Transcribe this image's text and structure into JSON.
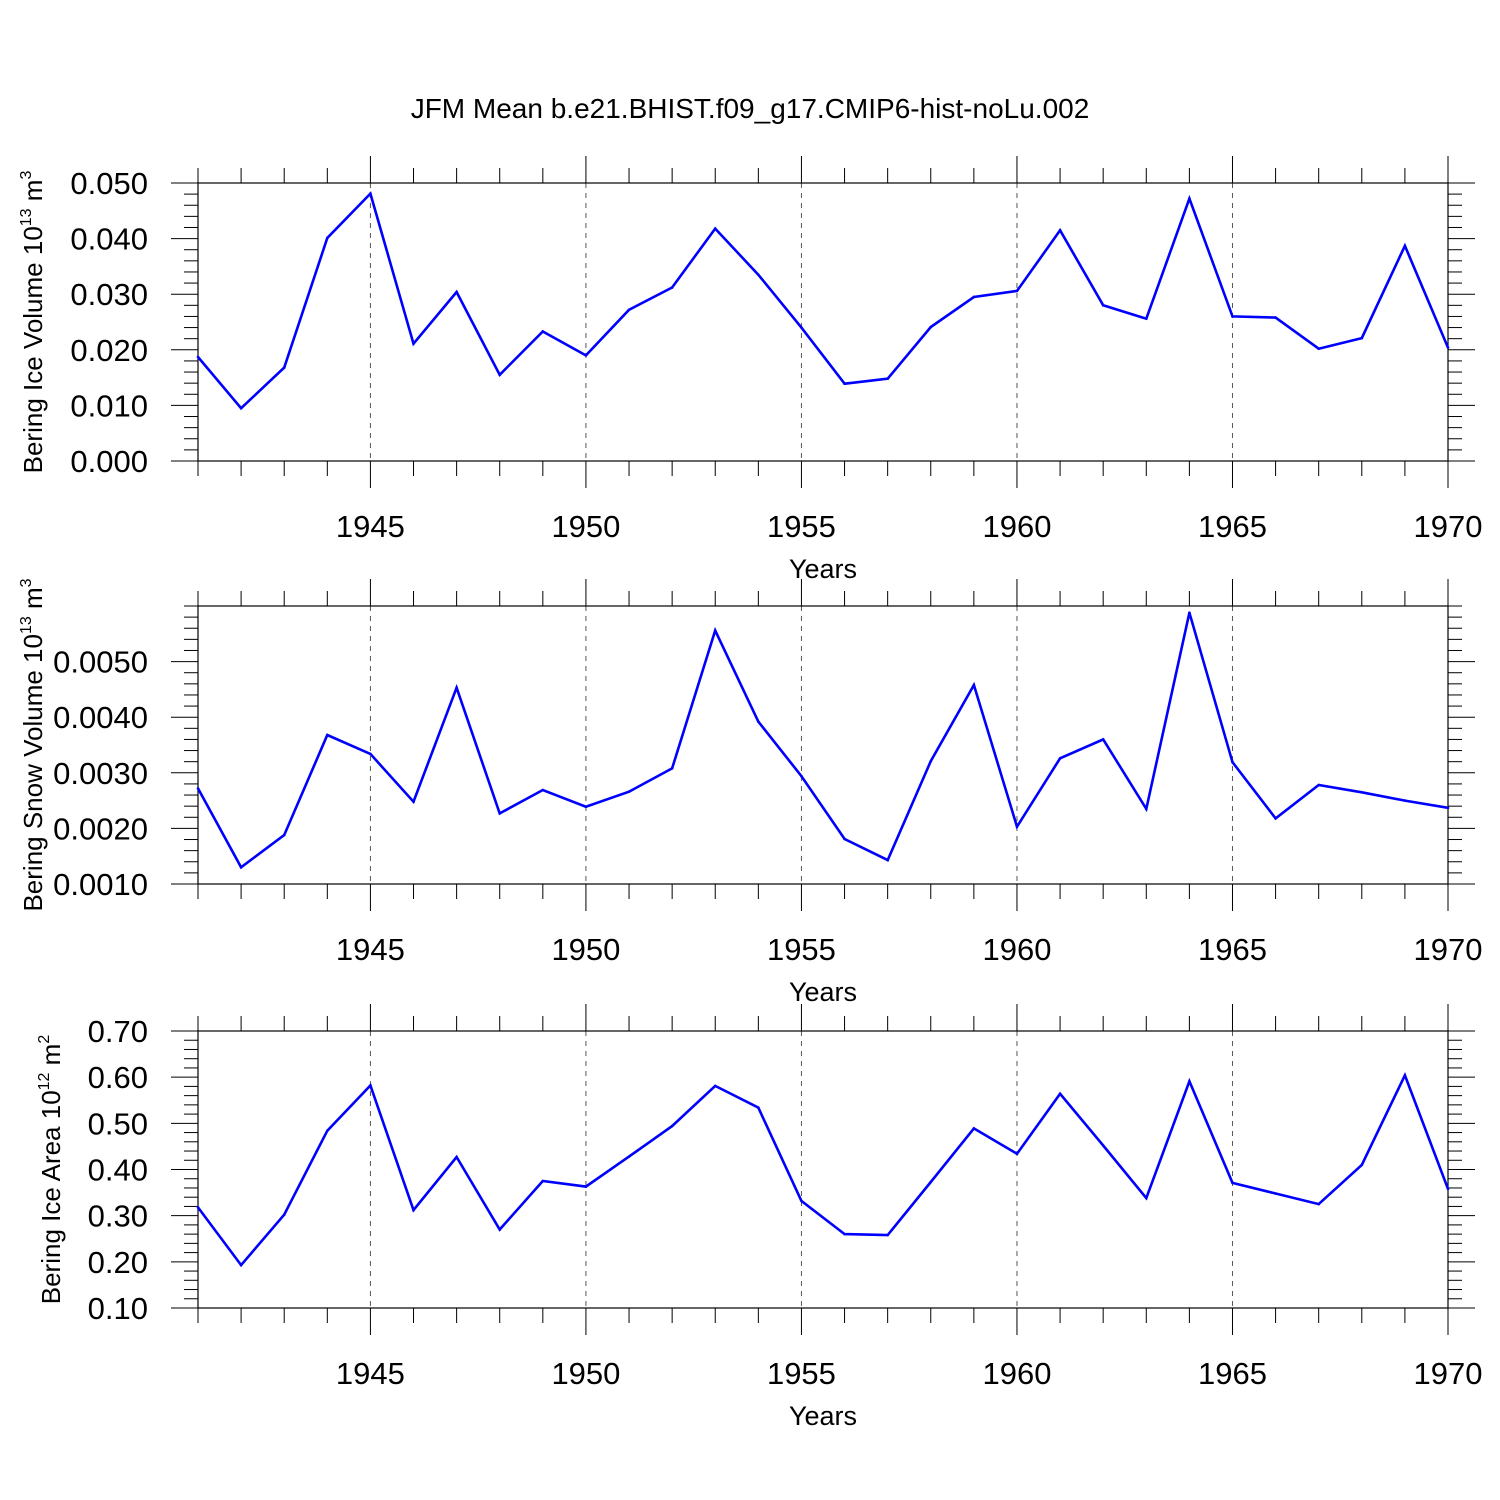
{
  "title": "JFM Mean b.e21.BHIST.f09_g17.CMIP6-hist-noLu.002",
  "colors": {
    "series": "#0000ff",
    "axis": "#000000",
    "grid": "#555555"
  },
  "chart_data": [
    {
      "type": "line",
      "ylabel": "Bering Ice Volume 10",
      "ylabel_exp": "13",
      "ylabel_unit": " m",
      "ylabel_unit_exp": "3",
      "xlabel": "Years",
      "xlim": [
        1941,
        1970
      ],
      "ylim": [
        0.0,
        0.05
      ],
      "yticks": [
        "0.000",
        "0.010",
        "0.020",
        "0.030",
        "0.040",
        "0.050"
      ],
      "xticks": [
        "1945",
        "1950",
        "1955",
        "1960",
        "1965",
        "1970"
      ],
      "grid": "vertical dashed at major x ticks",
      "x": [
        1941,
        1942,
        1943,
        1944,
        1945,
        1946,
        1947,
        1948,
        1949,
        1950,
        1951,
        1952,
        1953,
        1954,
        1955,
        1956,
        1957,
        1958,
        1959,
        1960,
        1961,
        1962,
        1963,
        1964,
        1965,
        1966,
        1967,
        1968,
        1969,
        1970
      ],
      "values": [
        0.0187,
        0.0095,
        0.0168,
        0.0401,
        0.0481,
        0.0211,
        0.0304,
        0.0155,
        0.0233,
        0.019,
        0.0272,
        0.0312,
        0.0418,
        0.0335,
        0.024,
        0.0139,
        0.0148,
        0.0241,
        0.0295,
        0.0306,
        0.0415,
        0.028,
        0.0256,
        0.0472,
        0.026,
        0.0258,
        0.0202,
        0.0221,
        0.0387,
        0.0204
      ]
    },
    {
      "type": "line",
      "ylabel": "Bering Snow Volume 10",
      "ylabel_exp": "13",
      "ylabel_unit": " m",
      "ylabel_unit_exp": "3",
      "xlabel": "Years",
      "xlim": [
        1941,
        1970
      ],
      "ylim": [
        0.001,
        0.006
      ],
      "yticks": [
        "0.0010",
        "0.0020",
        "0.0030",
        "0.0040",
        "0.0050"
      ],
      "xticks": [
        "1945",
        "1950",
        "1955",
        "1960",
        "1965",
        "1970"
      ],
      "grid": "vertical dashed at major x ticks",
      "x": [
        1941,
        1942,
        1943,
        1944,
        1945,
        1946,
        1947,
        1948,
        1949,
        1950,
        1951,
        1952,
        1953,
        1954,
        1955,
        1956,
        1957,
        1958,
        1959,
        1960,
        1961,
        1962,
        1963,
        1964,
        1965,
        1966,
        1967,
        1968,
        1969,
        1970
      ],
      "values": [
        0.00272,
        0.0013,
        0.00188,
        0.00368,
        0.00334,
        0.00248,
        0.00453,
        0.00227,
        0.00269,
        0.00239,
        0.00266,
        0.00308,
        0.00556,
        0.00392,
        0.00294,
        0.00181,
        0.00143,
        0.00321,
        0.00458,
        0.00203,
        0.00326,
        0.0036,
        0.00235,
        0.00588,
        0.00319,
        0.00218,
        0.00278,
        0.00265,
        0.0025,
        0.00237
      ]
    },
    {
      "type": "line",
      "ylabel": "Bering Ice Area 10",
      "ylabel_exp": "12",
      "ylabel_unit": " m",
      "ylabel_unit_exp": "2",
      "xlabel": "Years",
      "xlim": [
        1941,
        1970
      ],
      "ylim": [
        0.1,
        0.7
      ],
      "yticks": [
        "0.10",
        "0.20",
        "0.30",
        "0.40",
        "0.50",
        "0.60",
        "0.70"
      ],
      "xticks": [
        "1945",
        "1950",
        "1955",
        "1960",
        "1965",
        "1970"
      ],
      "grid": "vertical dashed at major x ticks",
      "x": [
        1941,
        1942,
        1943,
        1944,
        1945,
        1946,
        1947,
        1948,
        1949,
        1950,
        1951,
        1952,
        1953,
        1954,
        1955,
        1956,
        1957,
        1958,
        1959,
        1960,
        1961,
        1962,
        1963,
        1964,
        1965,
        1966,
        1967,
        1968,
        1969,
        1970
      ],
      "values": [
        0.318,
        0.193,
        0.302,
        0.484,
        0.582,
        0.312,
        0.427,
        0.27,
        0.375,
        0.363,
        0.428,
        0.494,
        0.581,
        0.534,
        0.332,
        0.26,
        0.258,
        0.373,
        0.489,
        0.434,
        0.564,
        0.452,
        0.338,
        0.591,
        0.371,
        0.348,
        0.325,
        0.41,
        0.604,
        0.358
      ]
    }
  ]
}
